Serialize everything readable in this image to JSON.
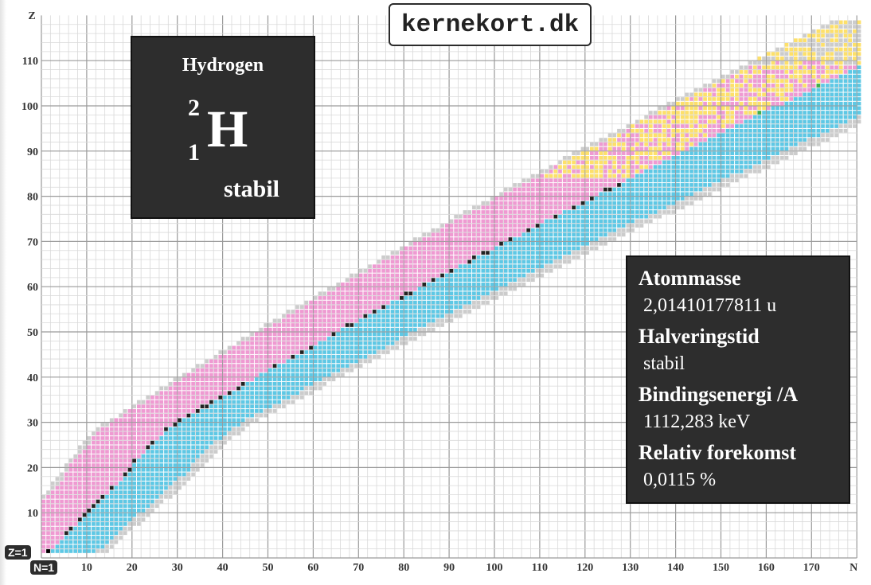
{
  "site": {
    "logo_text": "kernekort.dk"
  },
  "selected_nuclide": {
    "name": "Hydrogen",
    "mass_number": "2",
    "atomic_number": "1",
    "symbol": "H",
    "status": "stabil"
  },
  "info_panel": {
    "rows": [
      {
        "label": "Atommasse",
        "value": "2,01410177811 u"
      },
      {
        "label": "Halveringstid",
        "value": "stabil"
      },
      {
        "label": "Bindingsenergi /A",
        "value": "1112,283 keV"
      },
      {
        "label": "Relativ forekomst",
        "value": "0,0115 %"
      }
    ]
  },
  "cursor_tags": {
    "z_tag": "Z=1",
    "n_tag": "N=1"
  },
  "chart_data": {
    "type": "heatmap",
    "xlabel": "N",
    "ylabel": "Z",
    "xlim": [
      0,
      180
    ],
    "ylim": [
      0,
      118
    ],
    "x_ticks": [
      10,
      20,
      30,
      40,
      50,
      60,
      70,
      80,
      90,
      100,
      110,
      120,
      130,
      140,
      150,
      160,
      170
    ],
    "y_ticks": [
      10,
      20,
      30,
      40,
      50,
      60,
      70,
      80,
      90,
      100,
      110
    ],
    "grid": true,
    "colors": {
      "stable": "#222222",
      "beta_minus": "#5ec8e5",
      "beta_plus_ec": "#ef9ad2",
      "alpha": "#fde06a",
      "spontaneous_fission": "#3fae49",
      "unknown": "#cccccc",
      "proton_emission": "#cc9966"
    },
    "legend": "none"
  }
}
